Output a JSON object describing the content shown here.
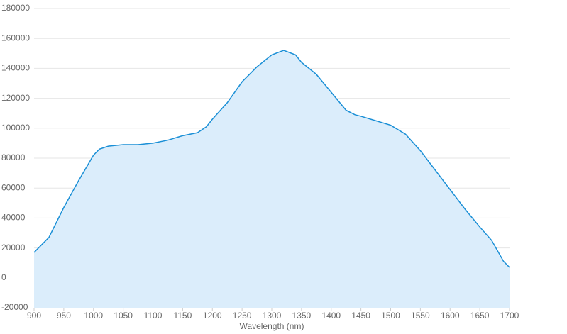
{
  "chart_data": {
    "type": "area",
    "x_label": "Wavelength (nm)",
    "x": [
      900,
      925,
      950,
      975,
      1000,
      1010,
      1025,
      1050,
      1075,
      1100,
      1125,
      1150,
      1175,
      1190,
      1200,
      1225,
      1250,
      1275,
      1300,
      1320,
      1340,
      1350,
      1375,
      1400,
      1425,
      1440,
      1450,
      1475,
      1500,
      1525,
      1550,
      1575,
      1600,
      1625,
      1650,
      1670,
      1690,
      1700
    ],
    "series": [
      {
        "color": "#1a8fd6",
        "fill": "#dbedfb",
        "values": [
          17000,
          27000,
          47000,
          65000,
          82000,
          86000,
          88000,
          89000,
          89000,
          90000,
          92000,
          95000,
          97000,
          101000,
          106000,
          117000,
          131000,
          141000,
          149000,
          152000,
          149000,
          144000,
          136000,
          124000,
          112000,
          109000,
          108000,
          105000,
          102000,
          96000,
          85000,
          72000,
          59000,
          46000,
          34000,
          25000,
          11000,
          7000
        ]
      }
    ],
    "xlim": [
      900,
      1700
    ],
    "xticks": [
      900,
      950,
      1000,
      1050,
      1100,
      1150,
      1200,
      1250,
      1300,
      1350,
      1400,
      1450,
      1500,
      1550,
      1600,
      1650,
      1700
    ],
    "ylim": [
      -20000,
      180000
    ],
    "yticks": [
      -20000,
      0,
      20000,
      40000,
      60000,
      80000,
      100000,
      120000,
      140000,
      160000,
      180000
    ],
    "grid": true
  }
}
